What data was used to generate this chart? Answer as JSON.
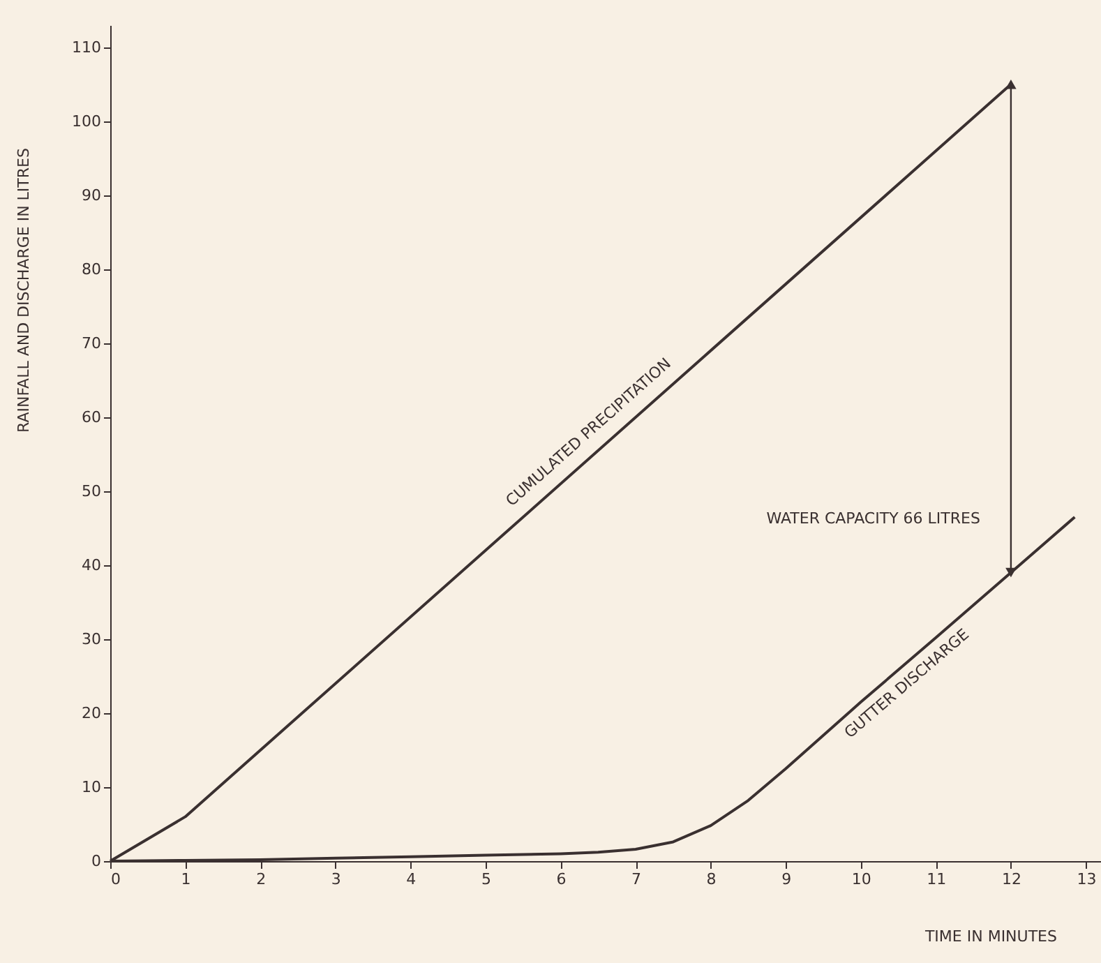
{
  "chart_data": {
    "type": "line",
    "xlabel": "TIME  IN  MINUTES",
    "ylabel": "RAINFALL AND  DISCHARGE  IN  LITRES",
    "xlim": [
      0,
      13.2
    ],
    "xticks": [
      0,
      1,
      2,
      3,
      4,
      5,
      6,
      7,
      8,
      9,
      10,
      11,
      12,
      13
    ],
    "ylim": [
      0,
      113
    ],
    "yticks": [
      0,
      10,
      20,
      30,
      40,
      50,
      60,
      70,
      80,
      90,
      100,
      110
    ],
    "grid": false,
    "marker": "none",
    "line_style": "solid",
    "series": [
      {
        "color": "#3a3030",
        "x": [
          0,
          1,
          12
        ],
        "values": [
          0,
          6,
          105
        ]
      },
      {
        "color": "#3a3030",
        "x": [
          0,
          1,
          2,
          3,
          4,
          5,
          6,
          6.5,
          7,
          7.5,
          8,
          8.5,
          9,
          10,
          11,
          12,
          12.85
        ],
        "values": [
          0,
          0.1,
          0.2,
          0.4,
          0.6,
          0.8,
          1,
          1.2,
          1.6,
          2.6,
          4.8,
          8.2,
          12.5,
          21.5,
          30.2,
          39,
          46.5
        ]
      }
    ],
    "annotations": [
      {
        "text": "CUMULATED PRECIPITATION",
        "x": 6.5,
        "y": 56.5
      },
      {
        "text": "GUTTER DISCHARGE",
        "x": 10.4,
        "y": 26.5
      },
      "WATER  CAPACITY  66 LITRES"
    ]
  }
}
